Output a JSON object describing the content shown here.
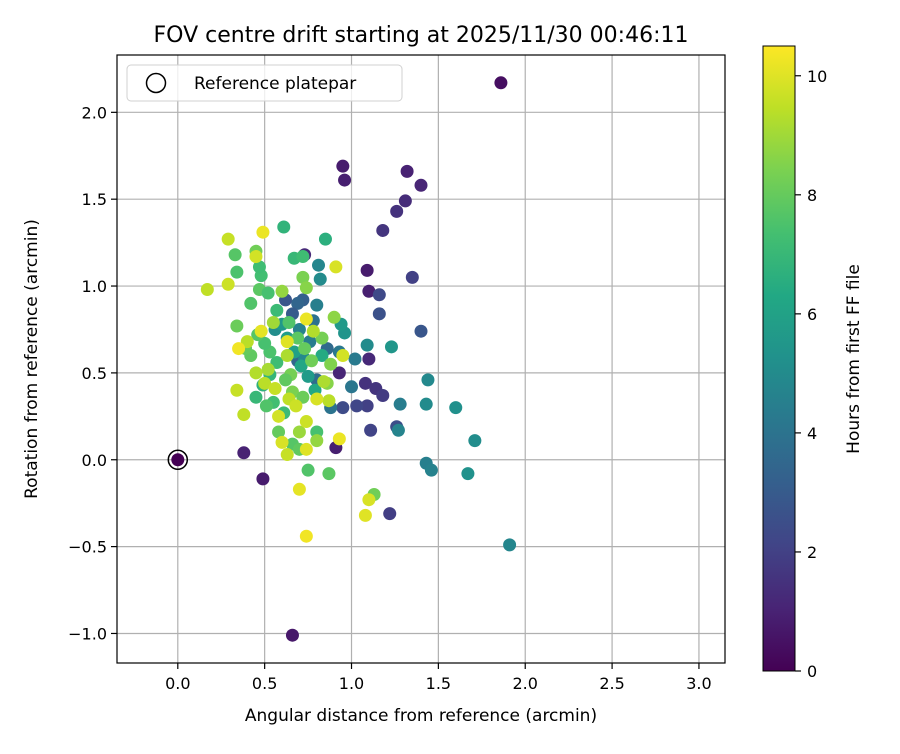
{
  "chart_data": {
    "type": "scatter",
    "title": "FOV centre drift starting at 2025/11/30 00:46:11",
    "xlabel": "Angular distance from reference (arcmin)",
    "ylabel": "Rotation from reference (arcmin)",
    "xlim": [
      -0.35,
      3.15
    ],
    "ylim": [
      -1.17,
      2.33
    ],
    "xticks": [
      0.0,
      0.5,
      1.0,
      1.5,
      2.0,
      2.5,
      3.0
    ],
    "xtick_labels": [
      "0.0",
      "0.5",
      "1.0",
      "1.5",
      "2.0",
      "2.5",
      "3.0"
    ],
    "yticks": [
      -1.0,
      -0.5,
      0.0,
      0.5,
      1.0,
      1.5,
      2.0
    ],
    "ytick_labels": [
      "−1.0",
      "−0.5",
      "0.0",
      "0.5",
      "1.0",
      "1.5",
      "2.0"
    ],
    "grid": true,
    "legend": {
      "position": "top-left",
      "label": "Reference platepar"
    },
    "reference_point": {
      "x": 0.0,
      "y": 0.0
    },
    "colorbar": {
      "label": "Hours from first FF file",
      "range": [
        0,
        10.5
      ],
      "ticks": [
        0,
        2,
        4,
        6,
        8,
        10
      ],
      "tick_labels": [
        "0",
        "2",
        "4",
        "6",
        "8",
        "10"
      ],
      "colormap": "viridis"
    },
    "points": [
      {
        "x": 1.86,
        "y": 2.17,
        "h": 0.4
      },
      {
        "x": 0.95,
        "y": 1.69,
        "h": 0.8
      },
      {
        "x": 0.96,
        "y": 1.61,
        "h": 0.9
      },
      {
        "x": 1.32,
        "y": 1.66,
        "h": 1.0
      },
      {
        "x": 1.4,
        "y": 1.58,
        "h": 1.1
      },
      {
        "x": 1.31,
        "y": 1.49,
        "h": 1.3
      },
      {
        "x": 1.26,
        "y": 1.43,
        "h": 1.5
      },
      {
        "x": 1.18,
        "y": 1.32,
        "h": 1.6
      },
      {
        "x": 0.73,
        "y": 1.18,
        "h": 1.2
      },
      {
        "x": 1.09,
        "y": 1.09,
        "h": 0.8
      },
      {
        "x": 1.1,
        "y": 0.97,
        "h": 0.9
      },
      {
        "x": 1.35,
        "y": 1.05,
        "h": 2.0
      },
      {
        "x": 1.16,
        "y": 0.95,
        "h": 2.3
      },
      {
        "x": 1.16,
        "y": 0.84,
        "h": 2.6
      },
      {
        "x": 1.4,
        "y": 0.74,
        "h": 2.8
      },
      {
        "x": 1.1,
        "y": 0.58,
        "h": 1.2
      },
      {
        "x": 1.08,
        "y": 0.44,
        "h": 1.5
      },
      {
        "x": 1.14,
        "y": 0.41,
        "h": 1.6
      },
      {
        "x": 1.18,
        "y": 0.37,
        "h": 1.8
      },
      {
        "x": 1.09,
        "y": 0.31,
        "h": 2.0
      },
      {
        "x": 1.03,
        "y": 0.31,
        "h": 2.2
      },
      {
        "x": 0.95,
        "y": 0.3,
        "h": 2.4
      },
      {
        "x": 0.93,
        "y": 0.5,
        "h": 1.1
      },
      {
        "x": 1.11,
        "y": 0.17,
        "h": 2.1
      },
      {
        "x": 1.26,
        "y": 0.19,
        "h": 2.5
      },
      {
        "x": 0.91,
        "y": 0.07,
        "h": 0.9
      },
      {
        "x": 0.38,
        "y": 0.04,
        "h": 1.0
      },
      {
        "x": 0.49,
        "y": -0.11,
        "h": 0.8
      },
      {
        "x": 1.22,
        "y": -0.31,
        "h": 1.9
      },
      {
        "x": 0.66,
        "y": -1.01,
        "h": 0.7
      },
      {
        "x": 1.91,
        "y": -0.49,
        "h": 4.8
      },
      {
        "x": 1.71,
        "y": 0.11,
        "h": 5.1
      },
      {
        "x": 1.67,
        "y": -0.08,
        "h": 5.3
      },
      {
        "x": 1.43,
        "y": -0.02,
        "h": 4.5
      },
      {
        "x": 1.46,
        "y": -0.06,
        "h": 4.6
      },
      {
        "x": 1.6,
        "y": 0.3,
        "h": 5.2
      },
      {
        "x": 1.43,
        "y": 0.32,
        "h": 5.0
      },
      {
        "x": 1.44,
        "y": 0.46,
        "h": 4.9
      },
      {
        "x": 1.28,
        "y": 0.32,
        "h": 4.4
      },
      {
        "x": 1.27,
        "y": 0.17,
        "h": 4.7
      },
      {
        "x": 1.23,
        "y": 0.65,
        "h": 5.5
      },
      {
        "x": 1.09,
        "y": 0.66,
        "h": 5.0
      },
      {
        "x": 1.02,
        "y": 0.58,
        "h": 4.3
      },
      {
        "x": 1.0,
        "y": 0.42,
        "h": 4.1
      },
      {
        "x": 0.88,
        "y": 0.3,
        "h": 4.0
      },
      {
        "x": 0.96,
        "y": 0.73,
        "h": 5.4
      },
      {
        "x": 0.94,
        "y": 0.78,
        "h": 5.6
      },
      {
        "x": 0.93,
        "y": 0.62,
        "h": 4.2
      },
      {
        "x": 0.86,
        "y": 0.64,
        "h": 3.6
      },
      {
        "x": 0.81,
        "y": 1.12,
        "h": 4.8
      },
      {
        "x": 0.82,
        "y": 1.04,
        "h": 5.0
      },
      {
        "x": 0.8,
        "y": 0.89,
        "h": 4.5
      },
      {
        "x": 0.78,
        "y": 0.8,
        "h": 3.9
      },
      {
        "x": 0.72,
        "y": 0.92,
        "h": 3.2
      },
      {
        "x": 0.69,
        "y": 0.9,
        "h": 3.4
      },
      {
        "x": 0.76,
        "y": 0.68,
        "h": 4.4
      },
      {
        "x": 0.8,
        "y": 0.46,
        "h": 3.7
      },
      {
        "x": 0.69,
        "y": 0.57,
        "h": 3.5
      },
      {
        "x": 0.62,
        "y": 0.92,
        "h": 2.8
      },
      {
        "x": 0.66,
        "y": 0.84,
        "h": 3.0
      },
      {
        "x": 0.7,
        "y": 0.75,
        "h": 4.6
      },
      {
        "x": 0.73,
        "y": 0.58,
        "h": 4.9
      },
      {
        "x": 0.56,
        "y": 0.75,
        "h": 5.1
      },
      {
        "x": 0.6,
        "y": 0.78,
        "h": 5.6
      },
      {
        "x": 0.63,
        "y": 0.7,
        "h": 5.8
      },
      {
        "x": 0.67,
        "y": 0.62,
        "h": 6.0
      },
      {
        "x": 0.71,
        "y": 0.54,
        "h": 6.2
      },
      {
        "x": 0.75,
        "y": 0.48,
        "h": 5.7
      },
      {
        "x": 0.79,
        "y": 0.4,
        "h": 6.3
      },
      {
        "x": 0.83,
        "y": 0.6,
        "h": 6.4
      },
      {
        "x": 0.85,
        "y": 1.27,
        "h": 6.6
      },
      {
        "x": 0.61,
        "y": 1.34,
        "h": 6.8
      },
      {
        "x": 0.67,
        "y": 1.16,
        "h": 7.0
      },
      {
        "x": 0.72,
        "y": 1.17,
        "h": 7.2
      },
      {
        "x": 0.8,
        "y": 0.16,
        "h": 7.4
      },
      {
        "x": 0.75,
        "y": -0.06,
        "h": 7.6
      },
      {
        "x": 0.87,
        "y": -0.08,
        "h": 7.8
      },
      {
        "x": 1.13,
        "y": -0.2,
        "h": 8.2
      },
      {
        "x": 0.66,
        "y": 0.09,
        "h": 7.7
      },
      {
        "x": 0.7,
        "y": 0.06,
        "h": 7.9
      },
      {
        "x": 0.58,
        "y": 0.16,
        "h": 8.0
      },
      {
        "x": 0.61,
        "y": 0.27,
        "h": 7.1
      },
      {
        "x": 0.55,
        "y": 0.33,
        "h": 7.3
      },
      {
        "x": 0.51,
        "y": 0.31,
        "h": 7.6
      },
      {
        "x": 0.45,
        "y": 0.36,
        "h": 7.0
      },
      {
        "x": 0.49,
        "y": 0.43,
        "h": 6.7
      },
      {
        "x": 0.53,
        "y": 0.49,
        "h": 6.9
      },
      {
        "x": 0.57,
        "y": 0.56,
        "h": 7.2
      },
      {
        "x": 0.53,
        "y": 0.62,
        "h": 7.5
      },
      {
        "x": 0.5,
        "y": 0.67,
        "h": 7.4
      },
      {
        "x": 0.46,
        "y": 0.72,
        "h": 7.7
      },
      {
        "x": 0.42,
        "y": 0.6,
        "h": 7.9
      },
      {
        "x": 0.39,
        "y": 0.64,
        "h": 8.0
      },
      {
        "x": 0.34,
        "y": 0.77,
        "h": 8.1
      },
      {
        "x": 0.42,
        "y": 0.9,
        "h": 7.6
      },
      {
        "x": 0.47,
        "y": 0.98,
        "h": 7.8
      },
      {
        "x": 0.52,
        "y": 0.96,
        "h": 7.4
      },
      {
        "x": 0.48,
        "y": 1.06,
        "h": 7.3
      },
      {
        "x": 0.47,
        "y": 1.11,
        "h": 7.2
      },
      {
        "x": 0.34,
        "y": 1.08,
        "h": 7.5
      },
      {
        "x": 0.33,
        "y": 1.18,
        "h": 7.7
      },
      {
        "x": 0.45,
        "y": 1.2,
        "h": 8.2
      },
      {
        "x": 0.57,
        "y": 0.86,
        "h": 7.1
      },
      {
        "x": 0.64,
        "y": 0.79,
        "h": 7.6
      },
      {
        "x": 0.69,
        "y": 0.7,
        "h": 7.8
      },
      {
        "x": 0.73,
        "y": 0.64,
        "h": 8.0
      },
      {
        "x": 0.77,
        "y": 0.57,
        "h": 8.2
      },
      {
        "x": 0.65,
        "y": 0.49,
        "h": 8.3
      },
      {
        "x": 0.62,
        "y": 0.46,
        "h": 7.9
      },
      {
        "x": 0.66,
        "y": 0.39,
        "h": 8.4
      },
      {
        "x": 0.72,
        "y": 0.36,
        "h": 8.1
      },
      {
        "x": 0.83,
        "y": 0.7,
        "h": 8.3
      },
      {
        "x": 0.88,
        "y": 0.55,
        "h": 8.5
      },
      {
        "x": 0.86,
        "y": 0.44,
        "h": 8.6
      },
      {
        "x": 0.8,
        "y": 0.11,
        "h": 8.8
      },
      {
        "x": 0.7,
        "y": 0.16,
        "h": 8.9
      },
      {
        "x": 0.9,
        "y": 0.82,
        "h": 8.7
      },
      {
        "x": 0.72,
        "y": 1.05,
        "h": 8.4
      },
      {
        "x": 0.74,
        "y": 0.99,
        "h": 8.6
      },
      {
        "x": 0.6,
        "y": 0.97,
        "h": 8.8
      },
      {
        "x": 0.55,
        "y": 0.79,
        "h": 9.0
      },
      {
        "x": 0.63,
        "y": 0.6,
        "h": 9.2
      },
      {
        "x": 0.52,
        "y": 0.52,
        "h": 9.1
      },
      {
        "x": 0.45,
        "y": 0.5,
        "h": 9.3
      },
      {
        "x": 0.5,
        "y": 0.44,
        "h": 9.4
      },
      {
        "x": 0.56,
        "y": 0.41,
        "h": 9.6
      },
      {
        "x": 0.64,
        "y": 0.35,
        "h": 9.5
      },
      {
        "x": 0.68,
        "y": 0.31,
        "h": 9.7
      },
      {
        "x": 0.58,
        "y": 0.25,
        "h": 9.8
      },
      {
        "x": 0.6,
        "y": 0.1,
        "h": 9.9
      },
      {
        "x": 0.63,
        "y": 0.03,
        "h": 9.6
      },
      {
        "x": 0.74,
        "y": 0.06,
        "h": 10.0
      },
      {
        "x": 0.7,
        "y": -0.17,
        "h": 10.1
      },
      {
        "x": 0.74,
        "y": -0.44,
        "h": 10.3
      },
      {
        "x": 1.08,
        "y": -0.32,
        "h": 10.0
      },
      {
        "x": 1.1,
        "y": -0.23,
        "h": 9.9
      },
      {
        "x": 0.93,
        "y": 0.12,
        "h": 10.2
      },
      {
        "x": 0.74,
        "y": 0.22,
        "h": 9.7
      },
      {
        "x": 0.87,
        "y": 0.34,
        "h": 9.4
      },
      {
        "x": 0.95,
        "y": 0.6,
        "h": 9.8
      },
      {
        "x": 0.91,
        "y": 1.11,
        "h": 9.9
      },
      {
        "x": 0.74,
        "y": 0.81,
        "h": 10.2
      },
      {
        "x": 0.63,
        "y": 0.68,
        "h": 10.0
      },
      {
        "x": 0.48,
        "y": 0.74,
        "h": 10.1
      },
      {
        "x": 0.4,
        "y": 0.68,
        "h": 9.4
      },
      {
        "x": 0.35,
        "y": 0.64,
        "h": 10.3
      },
      {
        "x": 0.38,
        "y": 0.26,
        "h": 9.5
      },
      {
        "x": 0.34,
        "y": 0.4,
        "h": 9.6
      },
      {
        "x": 0.29,
        "y": 1.01,
        "h": 9.7
      },
      {
        "x": 0.17,
        "y": 0.98,
        "h": 9.5
      },
      {
        "x": 0.29,
        "y": 1.27,
        "h": 9.6
      },
      {
        "x": 0.45,
        "y": 1.17,
        "h": 9.8
      },
      {
        "x": 0.49,
        "y": 1.31,
        "h": 10.2
      },
      {
        "x": 0.78,
        "y": 0.74,
        "h": 9.3
      },
      {
        "x": 0.84,
        "y": 0.45,
        "h": 9.2
      },
      {
        "x": 0.8,
        "y": 0.35,
        "h": 9.9
      }
    ]
  }
}
